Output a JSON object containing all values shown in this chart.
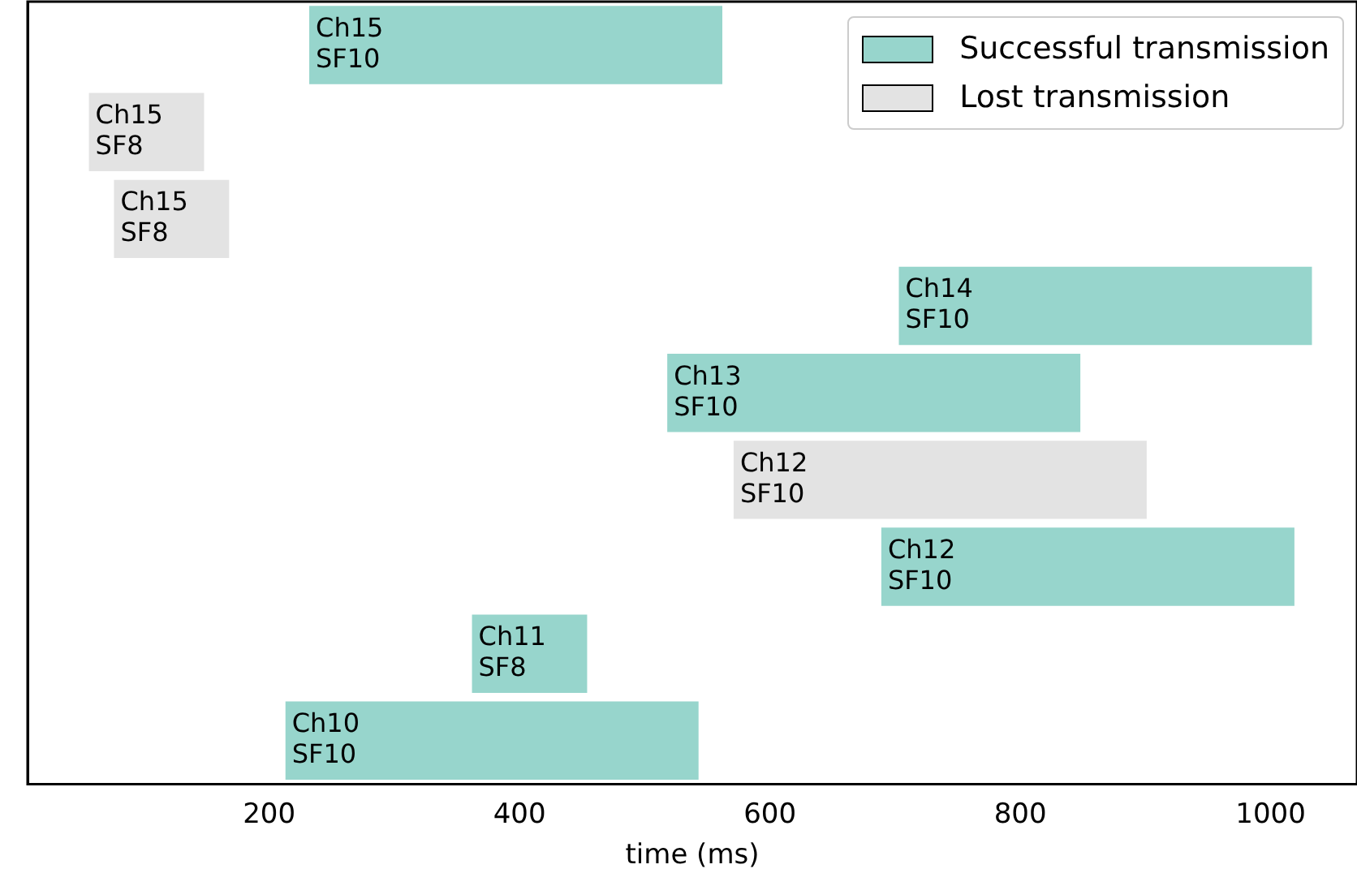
{
  "chart_data": {
    "type": "bar",
    "orientation": "horizontal",
    "xlabel": "time (ms)",
    "categories": [
      null,
      null,
      null,
      null,
      null,
      null,
      null,
      null,
      null
    ],
    "xlim": [
      7,
      1069
    ],
    "xticks": [
      200,
      400,
      600,
      800,
      1000
    ],
    "tick_labels": "x",
    "legend": "top right",
    "grid": false,
    "series": [
      {
        "name": "Successful transmission",
        "color": "#97d5cc",
        "base": [
          232,
          null,
          null,
          703,
          518,
          null,
          689,
          362,
          213
        ],
        "values": [
          330,
          null,
          null,
          330,
          330,
          null,
          330,
          92,
          330
        ],
        "value_labels": [
          "Ch15\nSF10",
          null,
          null,
          "Ch14\nSF10",
          "Ch13\nSF10",
          null,
          "Ch12\nSF10",
          "Ch11\nSF8",
          "Ch10\nSF10"
        ]
      },
      {
        "name": "Lost transmission",
        "color": "#e3e3e3",
        "base": [
          null,
          56,
          76,
          null,
          null,
          571,
          null,
          null,
          null
        ],
        "values": [
          null,
          92,
          92,
          null,
          null,
          330,
          null,
          null,
          null
        ],
        "value_labels": [
          null,
          "Ch15\nSF8",
          "Ch15\nSF8",
          null,
          null,
          "Ch12\nSF10",
          null,
          null,
          null
        ]
      }
    ]
  }
}
